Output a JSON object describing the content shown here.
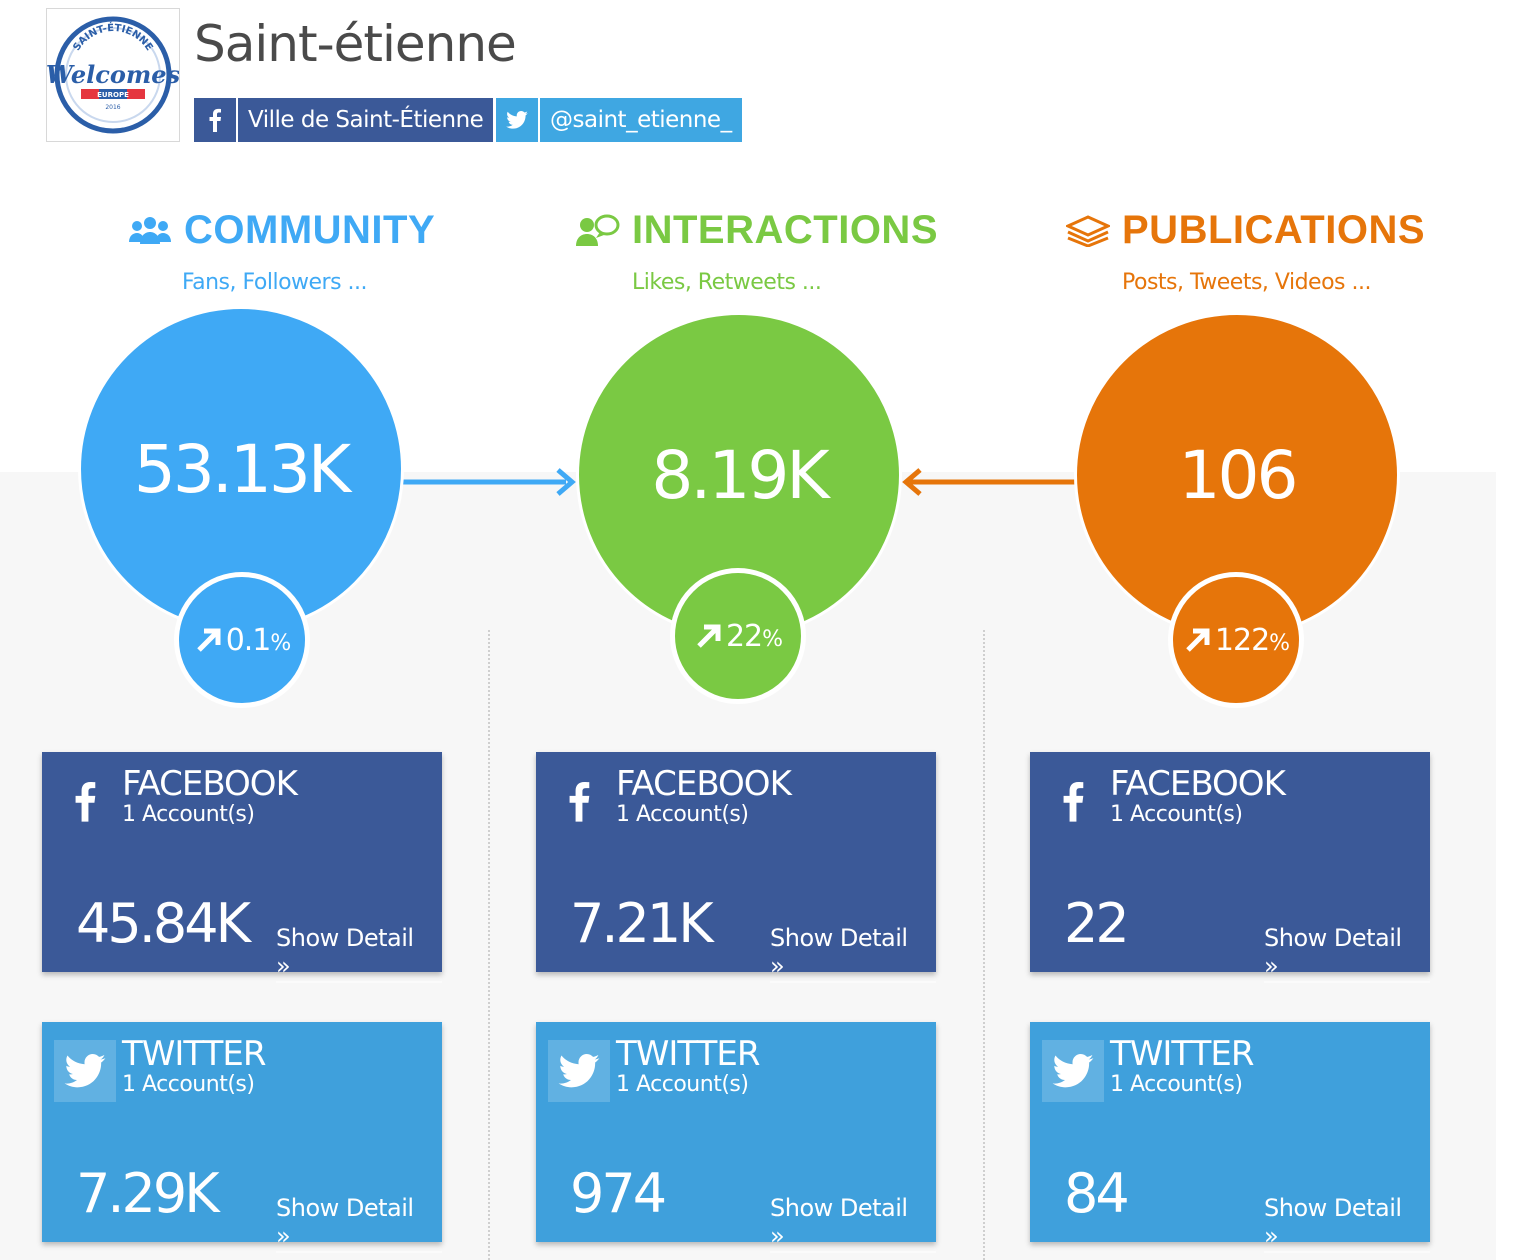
{
  "header": {
    "title": "Saint-étienne",
    "logo_text": [
      "SAINT-ÉTIENNE",
      "Welcomes",
      "EUROPE",
      "2016"
    ],
    "facebook_page": "Ville de Saint-Étienne",
    "twitter_handle": "@saint_etienne_"
  },
  "colors": {
    "community": "#3fa9f5",
    "interactions": "#7ac943",
    "publications": "#e6750a",
    "facebook": "#3b5998",
    "twitter": "#3fa0dc"
  },
  "sections": [
    {
      "title": "COMMUNITY",
      "subtitle": "Fans, Followers ...",
      "icon": "users-icon",
      "total": "53.13K",
      "change_value": "0.1",
      "change_unit": "%",
      "cards": [
        {
          "network": "FACEBOOK",
          "accounts": "1 Account(s)",
          "value": "45.84K",
          "detail": "Show Detail »"
        },
        {
          "network": "TWITTER",
          "accounts": "1 Account(s)",
          "value": "7.29K",
          "detail": "Show Detail »"
        }
      ]
    },
    {
      "title": "INTERACTIONS",
      "subtitle": "Likes, Retweets ...",
      "icon": "interaction-icon",
      "total": "8.19K",
      "change_value": "22",
      "change_unit": "%",
      "cards": [
        {
          "network": "FACEBOOK",
          "accounts": "1 Account(s)",
          "value": "7.21K",
          "detail": "Show Detail »"
        },
        {
          "network": "TWITTER",
          "accounts": "1 Account(s)",
          "value": "974",
          "detail": "Show Detail »"
        }
      ]
    },
    {
      "title": "PUBLICATIONS",
      "subtitle": "Posts, Tweets, Videos ...",
      "icon": "layers-icon",
      "total": "106",
      "change_value": "122",
      "change_unit": "%",
      "cards": [
        {
          "network": "FACEBOOK",
          "accounts": "1 Account(s)",
          "value": "22",
          "detail": "Show Detail »"
        },
        {
          "network": "TWITTER",
          "accounts": "1 Account(s)",
          "value": "84",
          "detail": "Show Detail »"
        }
      ]
    }
  ]
}
